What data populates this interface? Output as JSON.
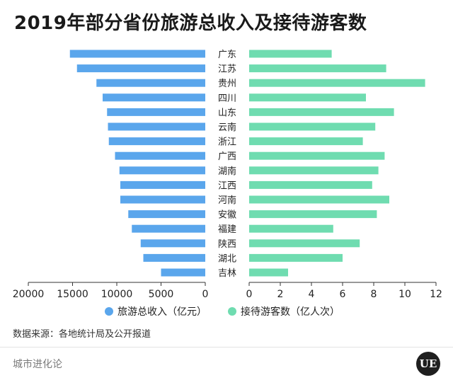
{
  "page": {
    "title": "2019年部分省份旅游总收入及接待游客数",
    "source": "数据来源：各地统计局及公开报道",
    "brand": "城市进化论",
    "logo_text": "UE"
  },
  "chart_data": {
    "type": "bar",
    "orientation": "horizontal-butterfly",
    "title": "2019年部分省份旅游总收入及接待游客数",
    "categories": [
      "广东",
      "江苏",
      "贵州",
      "四川",
      "山东",
      "云南",
      "浙江",
      "广西",
      "湖南",
      "江西",
      "河南",
      "安徽",
      "福建",
      "陕西",
      "湖北",
      "吉林"
    ],
    "series": [
      {
        "name": "旅游总收入（亿元）",
        "color": "#5aa6ec",
        "side": "left",
        "values": [
          15300,
          14500,
          12300,
          11600,
          11100,
          11000,
          10900,
          10200,
          9700,
          9600,
          9600,
          8700,
          8300,
          7300,
          7000,
          5000
        ],
        "xlim": [
          0,
          20000
        ],
        "ticks": [
          20000,
          15000,
          10000,
          5000,
          0
        ]
      },
      {
        "name": "接待游客数（亿人次）",
        "color": "#6fdcb0",
        "side": "right",
        "values": [
          5.3,
          8.8,
          11.3,
          7.5,
          9.3,
          8.1,
          7.3,
          8.7,
          8.3,
          7.9,
          9.0,
          8.2,
          5.4,
          7.1,
          6.0,
          2.5
        ],
        "xlim": [
          0,
          12
        ],
        "ticks": [
          0,
          2,
          4,
          6,
          8,
          10,
          12
        ]
      }
    ],
    "legend": {
      "placement": "bottom-center",
      "items": [
        "旅游总收入（亿元）",
        "接待游客数（亿人次）"
      ]
    },
    "grid": false
  }
}
